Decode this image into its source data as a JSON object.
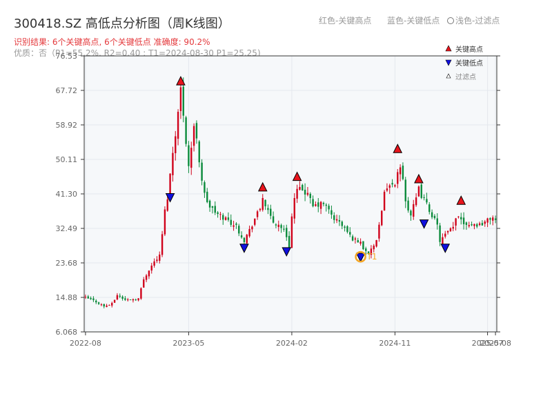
{
  "header": {
    "title": "300418.SZ 高低点分析图（周K线图）",
    "result_line": "识别结果: 6个关键高点, 6个关键低点  准确度: 90.2%",
    "quality_line": "优质：否（P1=55.2%, R2=0.40 ; T1=2024-08-30 P1=25.25)"
  },
  "top_legend": {
    "red_label": "红色-关键高点",
    "blue_label": "蓝色-关键低点",
    "light_label": "浅色-过滤点"
  },
  "chart_legend": {
    "high_label": "关键高点",
    "low_label": "关键低点",
    "filtered_label": "过滤点"
  },
  "colors": {
    "up": "#d0021b",
    "down": "#0a8a3a",
    "high_marker": "#e8141c",
    "low_marker": "#1010e0",
    "filtered_marker": "#f5a623",
    "grid": "#e4e8ee",
    "plot_bg": "#f6f8fa",
    "axis": "#333333"
  },
  "chart_data": {
    "type": "candlestick",
    "ylim": [
      6.068,
      76.53
    ],
    "y_ticks": [
      "6.068",
      "14.88",
      "23.68",
      "32.49",
      "41.30",
      "50.11",
      "58.92",
      "67.72",
      "76.53"
    ],
    "x_ticks": [
      {
        "label": "2022-08",
        "week": 0
      },
      {
        "label": "2023-05",
        "week": 39
      },
      {
        "label": "2024-02",
        "week": 78
      },
      {
        "label": "2024-11",
        "week": 117
      },
      {
        "label": "2025-07",
        "week": 152
      },
      {
        "label": "2025-08",
        "week": 155
      }
    ],
    "weeks": 156,
    "close_path": [
      [
        0,
        14.8
      ],
      [
        4,
        13.8
      ],
      [
        7,
        12.6
      ],
      [
        10,
        13.2
      ],
      [
        12,
        15.5
      ],
      [
        15,
        14.2
      ],
      [
        20,
        14.6
      ],
      [
        22,
        19.5
      ],
      [
        24,
        22.0
      ],
      [
        26,
        24.0
      ],
      [
        28,
        25.5
      ],
      [
        29,
        31.0
      ],
      [
        30,
        37.0
      ],
      [
        31,
        40.5
      ],
      [
        33,
        52.0
      ],
      [
        35,
        62.0
      ],
      [
        36,
        68.0
      ],
      [
        37,
        62.0
      ],
      [
        38,
        55.0
      ],
      [
        39,
        48.5
      ],
      [
        41,
        58.0
      ],
      [
        42,
        56.0
      ],
      [
        43,
        50.0
      ],
      [
        44,
        45.0
      ],
      [
        45,
        41.0
      ],
      [
        47,
        38.0
      ],
      [
        50,
        36.0
      ],
      [
        53,
        35.0
      ],
      [
        57,
        33.0
      ],
      [
        60,
        29.5
      ],
      [
        62,
        32.0
      ],
      [
        64,
        35.0
      ],
      [
        66,
        37.5
      ],
      [
        67,
        40.5
      ],
      [
        69,
        36.5
      ],
      [
        71,
        34.0
      ],
      [
        74,
        33.0
      ],
      [
        76,
        30.5
      ],
      [
        77,
        28.0
      ],
      [
        78,
        35.5
      ],
      [
        79,
        40.0
      ],
      [
        80,
        42.0
      ],
      [
        82,
        42.5
      ],
      [
        84,
        41.0
      ],
      [
        86,
        38.0
      ],
      [
        88,
        38.5
      ],
      [
        90,
        38.8
      ],
      [
        92,
        37.0
      ],
      [
        94,
        35.0
      ],
      [
        96,
        34.0
      ],
      [
        98,
        32.5
      ],
      [
        100,
        30.5
      ],
      [
        102,
        29.5
      ],
      [
        104,
        29.0
      ],
      [
        105,
        27.5
      ],
      [
        106,
        27.0
      ],
      [
        107,
        25.5
      ],
      [
        108,
        27.5
      ],
      [
        109,
        28.0
      ],
      [
        110,
        29.0
      ],
      [
        111,
        33.0
      ],
      [
        112,
        36.5
      ],
      [
        113,
        42.5
      ],
      [
        115,
        43.0
      ],
      [
        116,
        44.5
      ],
      [
        117,
        43.0
      ],
      [
        118,
        46.0
      ],
      [
        119,
        48.0
      ],
      [
        120,
        45.0
      ],
      [
        121,
        40.0
      ],
      [
        122,
        37.5
      ],
      [
        123,
        36.0
      ],
      [
        124,
        38.0
      ],
      [
        125,
        40.0
      ],
      [
        126,
        42.5
      ],
      [
        127,
        41.0
      ],
      [
        129,
        38.5
      ],
      [
        131,
        36.0
      ],
      [
        133,
        33.0
      ],
      [
        134,
        29.5
      ],
      [
        135,
        30.0
      ],
      [
        137,
        31.5
      ],
      [
        139,
        32.5
      ],
      [
        140,
        35.0
      ],
      [
        141,
        36.0
      ],
      [
        143,
        34.0
      ],
      [
        146,
        33.5
      ],
      [
        149,
        33.5
      ],
      [
        152,
        34.5
      ],
      [
        154,
        35.5
      ],
      [
        155,
        34.5
      ]
    ],
    "key_highs": [
      {
        "week": 36,
        "price": 70.0
      },
      {
        "week": 67,
        "price": 42.9
      },
      {
        "week": 80,
        "price": 45.6
      },
      {
        "week": 118,
        "price": 52.7
      },
      {
        "week": 126,
        "price": 45.0
      },
      {
        "week": 142,
        "price": 39.5
      }
    ],
    "key_lows": [
      {
        "week": 32,
        "price": 40.5
      },
      {
        "week": 60,
        "price": 27.6
      },
      {
        "week": 76,
        "price": 26.7
      },
      {
        "week": 104,
        "price": 25.25
      },
      {
        "week": 128,
        "price": 33.8
      },
      {
        "week": 136,
        "price": 27.6
      }
    ],
    "filtered_points": [
      {
        "week": 104,
        "price": 25.25,
        "label": "T1"
      }
    ]
  }
}
